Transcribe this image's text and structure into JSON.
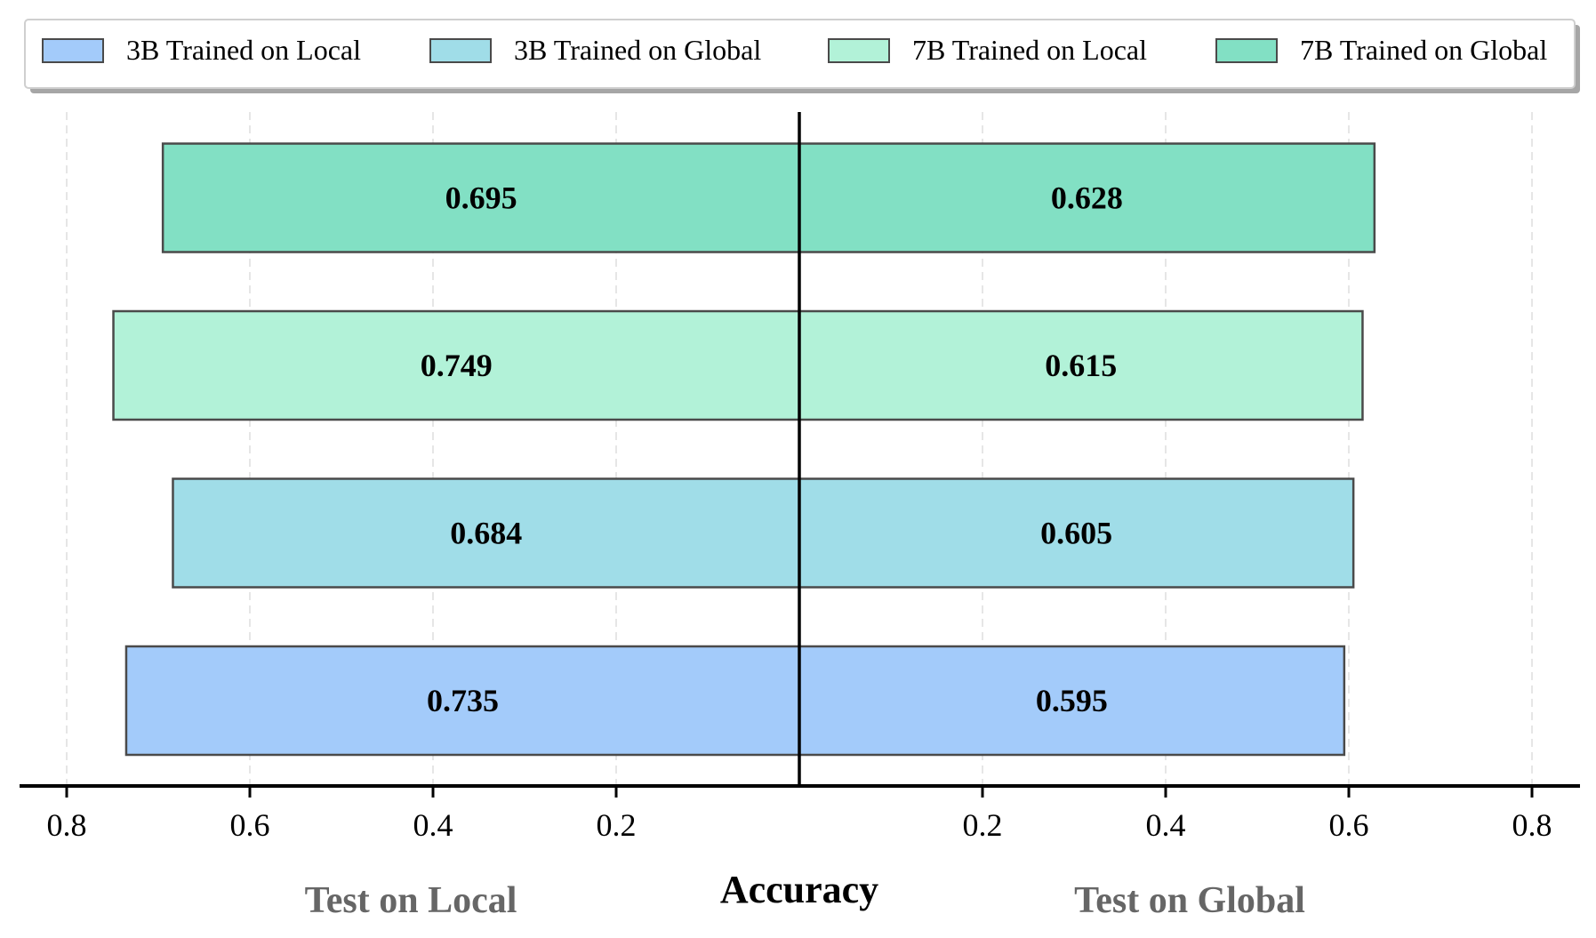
{
  "chart_data": {
    "type": "bar",
    "orientation": "horizontal-butterfly",
    "xlabel": "Accuracy",
    "left_label": "Test on Local",
    "right_label": "Test on Global",
    "xlim": [
      0,
      0.8
    ],
    "ticks": [
      0.8,
      0.6,
      0.4,
      0.2
    ],
    "tick_labels": [
      "0.8",
      "0.6",
      "0.4",
      "0.2"
    ],
    "grid": true,
    "legend_position": "top",
    "categories": [
      "3B Trained on Local",
      "3B Trained on Global",
      "7B Trained on Local",
      "7B Trained on Global"
    ],
    "series": [
      {
        "name": "Test on Local",
        "values": [
          0.735,
          0.684,
          0.749,
          0.695
        ]
      },
      {
        "name": "Test on Global",
        "values": [
          0.595,
          0.605,
          0.615,
          0.628
        ]
      }
    ],
    "labels_left": [
      "0.735",
      "0.684",
      "0.749",
      "0.695"
    ],
    "labels_right": [
      "0.595",
      "0.605",
      "0.615",
      "0.628"
    ],
    "colors": [
      "#a3cbfa",
      "#a0dde8",
      "#b2f2d8",
      "#82e0c4"
    ],
    "edge_color": "#4a4a4a"
  }
}
